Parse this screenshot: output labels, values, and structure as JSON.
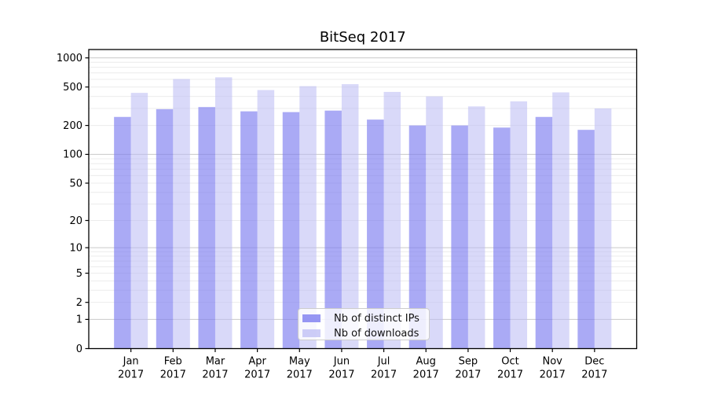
{
  "chart_data": {
    "type": "bar",
    "title": "BitSeq 2017",
    "categories": [
      "Jan 2017",
      "Feb 2017",
      "Mar 2017",
      "Apr 2017",
      "May 2017",
      "Jun 2017",
      "Jul 2017",
      "Aug 2017",
      "Sep 2017",
      "Oct 2017",
      "Nov 2017",
      "Dec 2017"
    ],
    "series": [
      {
        "name": "Nb of distinct IPs",
        "color": "#7c7cf0",
        "fill_opacity": 0.65,
        "values": [
          245,
          295,
          310,
          280,
          275,
          285,
          230,
          200,
          200,
          190,
          245,
          180
        ]
      },
      {
        "name": "Nb of downloads",
        "color": "#b9b9f4",
        "fill_opacity": 0.55,
        "values": [
          435,
          605,
          630,
          465,
          510,
          535,
          445,
          400,
          315,
          355,
          440,
          300
        ]
      }
    ],
    "xlabel": "",
    "ylabel": "",
    "yscale": "log1p",
    "ylim": [
      0,
      1220
    ],
    "yticks": [
      0,
      1,
      2,
      5,
      10,
      20,
      50,
      100,
      200,
      500,
      1000
    ],
    "grid": "horizontal",
    "grid_major_color": "#c9c9c9",
    "grid_minor_color": "#ececec",
    "axis_color": "#000000",
    "legend_position": "lower center"
  }
}
